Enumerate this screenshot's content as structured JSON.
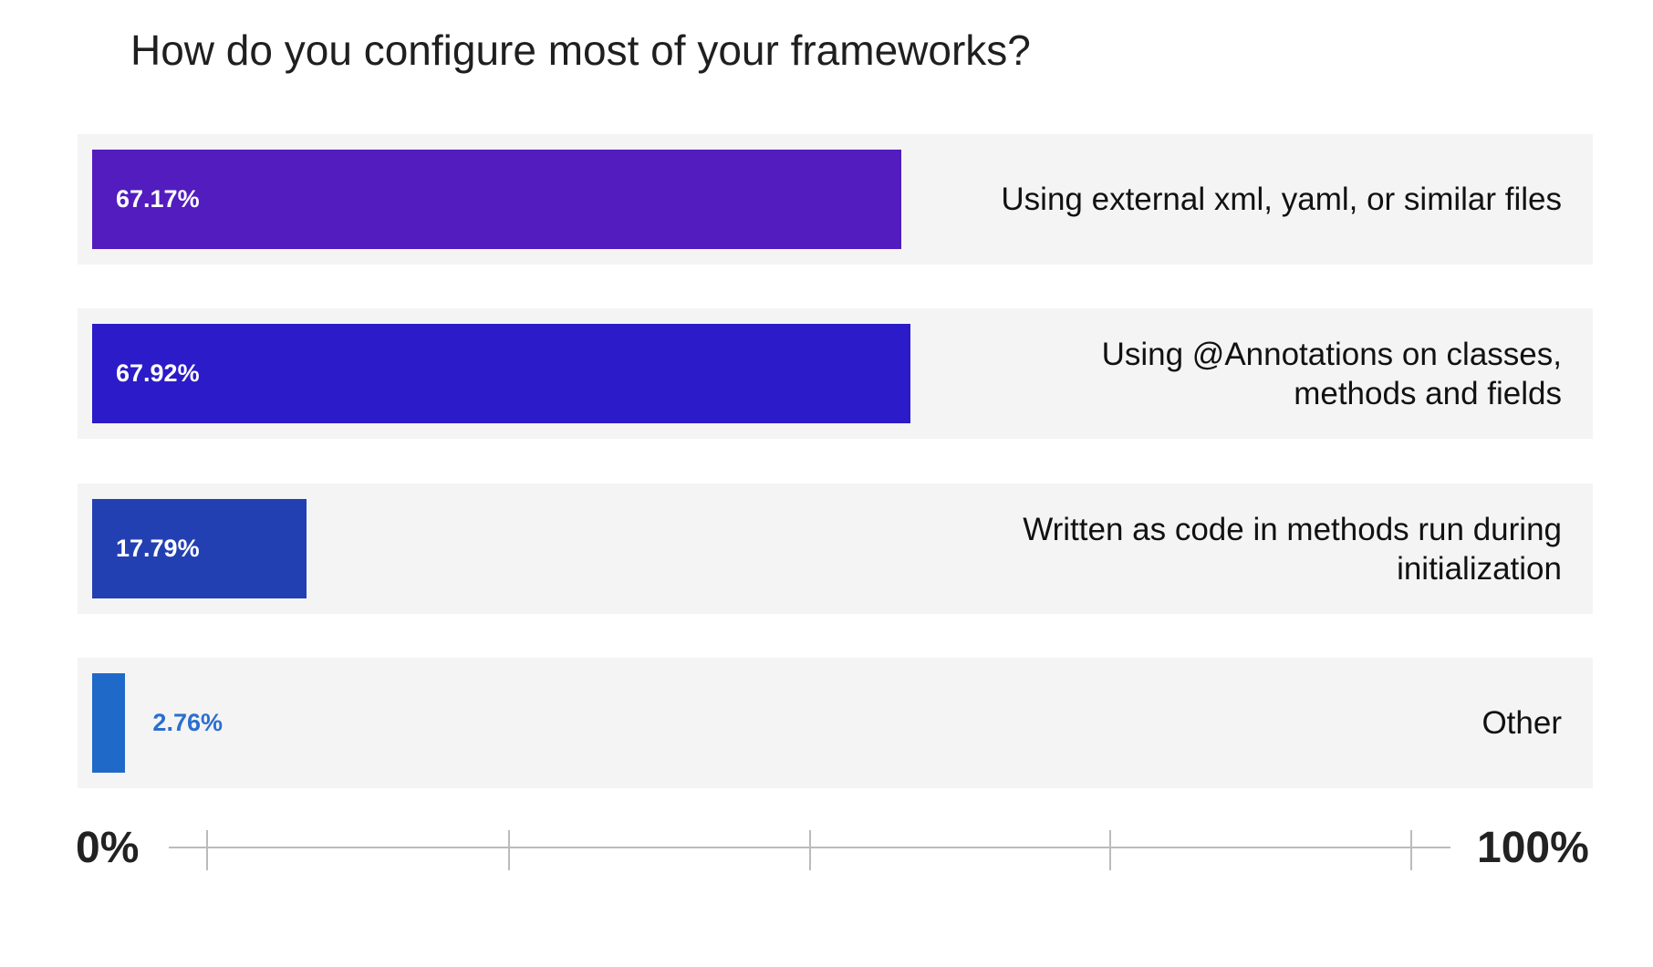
{
  "chart_data": {
    "type": "bar",
    "orientation": "horizontal",
    "title": "How do you configure most of your frameworks?",
    "xlim": [
      0,
      100
    ],
    "axis_start_label": "0%",
    "axis_end_label": "100%",
    "grid": false,
    "categories": [
      "Using external xml, yaml, or similar files",
      "Using @Annotations on classes, methods and fields",
      "Written as code in methods run during initialization",
      "Other"
    ],
    "values": [
      67.17,
      67.92,
      17.79,
      2.76
    ],
    "value_labels": [
      "67.17%",
      "67.92%",
      "17.79%",
      "2.76%"
    ],
    "colors": [
      "#521cbf",
      "#2b1bc8",
      "#2340b2",
      "#1f6ac8"
    ],
    "value_label_colors": [
      "#ffffff",
      "#ffffff",
      "#ffffff",
      "#2a6fcf"
    ],
    "track_color": "#f4f4f4",
    "axis_color": "#bbbbbb"
  }
}
